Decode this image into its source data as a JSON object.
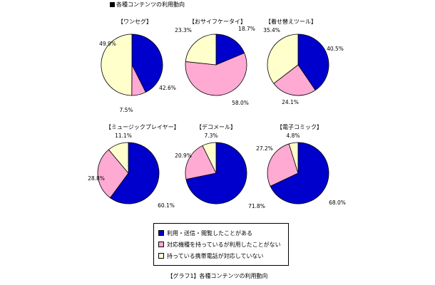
{
  "header": {
    "title": "各種コンテンツの利用動向"
  },
  "caption": "【グラフ1】各種コンテンツの利用動向",
  "colors": {
    "used": "#0000cc",
    "not_used": "#ffaad2",
    "unsupported": "#ffffcc"
  },
  "legend": {
    "items": [
      {
        "label": "利用・送信・閲覧したことがある",
        "color": "#0000cc"
      },
      {
        "label": "対応機種を持っているが利用したことがない",
        "color": "#ffaad2"
      },
      {
        "label": "持っている携帯電話が対応していない",
        "color": "#ffffcc"
      }
    ]
  },
  "chart_data": [
    {
      "type": "pie",
      "title": "【ワンセグ】",
      "slices": [
        {
          "series": "利用・送信・閲覧したことがある",
          "value": 42.6,
          "label": "42.6%"
        },
        {
          "series": "対応機種を持っているが利用したことがない",
          "value": 7.5,
          "label": "7.5%"
        },
        {
          "series": "持っている携帯電話が対応していない",
          "value": 49.9,
          "label": "49.9%"
        }
      ]
    },
    {
      "type": "pie",
      "title": "【おサイフケータイ】",
      "slices": [
        {
          "series": "利用・送信・閲覧したことがある",
          "value": 18.7,
          "label": "18.7%"
        },
        {
          "series": "対応機種を持っているが利用したことがない",
          "value": 58.0,
          "label": "58.0%"
        },
        {
          "series": "持っている携帯電話が対応していない",
          "value": 23.3,
          "label": "23.3%"
        }
      ]
    },
    {
      "type": "pie",
      "title": "【着せ替えツール】",
      "slices": [
        {
          "series": "利用・送信・閲覧したことがある",
          "value": 40.5,
          "label": "40.5%"
        },
        {
          "series": "対応機種を持っているが利用したことがない",
          "value": 24.1,
          "label": "24.1%"
        },
        {
          "series": "持っている携帯電話が対応していない",
          "value": 35.4,
          "label": "35.4%"
        }
      ]
    },
    {
      "type": "pie",
      "title": "【ミュージックプレイヤー】",
      "slices": [
        {
          "series": "利用・送信・閲覧したことがある",
          "value": 60.1,
          "label": "60.1%"
        },
        {
          "series": "対応機種を持っているが利用したことがない",
          "value": 28.8,
          "label": "28.8%"
        },
        {
          "series": "持っている携帯電話が対応していない",
          "value": 11.1,
          "label": "11.1%"
        }
      ]
    },
    {
      "type": "pie",
      "title": "【デコメール】",
      "slices": [
        {
          "series": "利用・送信・閲覧したことがある",
          "value": 71.8,
          "label": "71.8%"
        },
        {
          "series": "対応機種を持っているが利用したことがない",
          "value": 20.9,
          "label": "20.9%"
        },
        {
          "series": "持っている携帯電話が対応していない",
          "value": 7.3,
          "label": "7.3%"
        }
      ]
    },
    {
      "type": "pie",
      "title": "【電子コミック】",
      "slices": [
        {
          "series": "利用・送信・閲覧したことがある",
          "value": 68.0,
          "label": "68.0%"
        },
        {
          "series": "対応機種を持っているが利用したことがない",
          "value": 27.2,
          "label": "27.2%"
        },
        {
          "series": "持っている携帯電話が対応していない",
          "value": 4.8,
          "label": "4.8%"
        }
      ]
    }
  ]
}
